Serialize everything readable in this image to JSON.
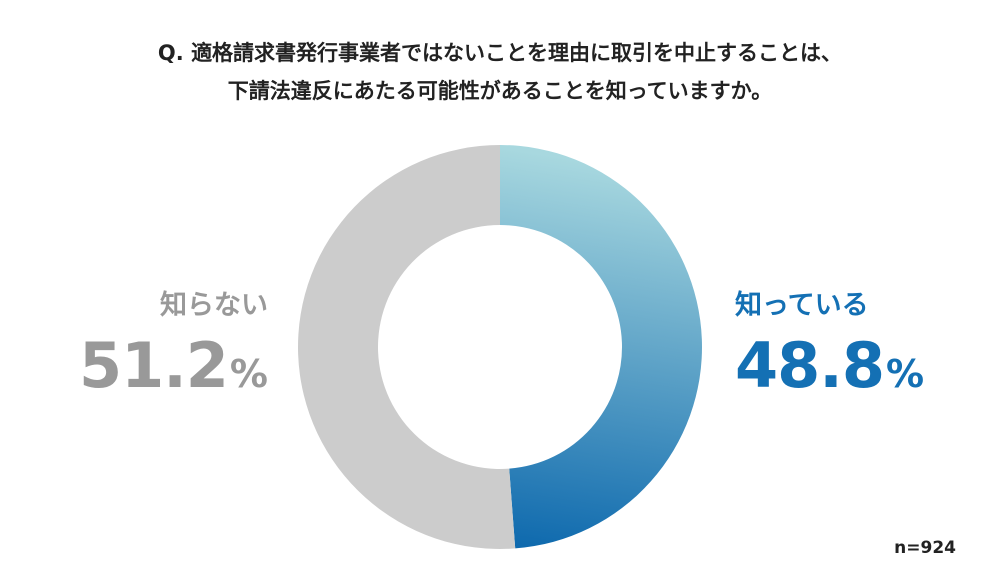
{
  "question": {
    "line1": "Q. 適格請求書発行事業者ではないことを理由に取引を中止することは、",
    "line2": "下請法違反にあたる可能性があることを知っていますか。"
  },
  "chart_data": {
    "type": "pie",
    "title": "",
    "slices": [
      {
        "label": "知っている",
        "value": 48.8,
        "display": "48.8",
        "color": "#1470b4",
        "gradient_from": "#a8d8df",
        "gradient_to": "#0f6aae"
      },
      {
        "label": "知らない",
        "value": 51.2,
        "display": "51.2",
        "color": "#cccccc"
      }
    ],
    "unit": "%",
    "donut": true,
    "start": "top",
    "direction": "clockwise"
  },
  "labels": {
    "left": {
      "name": "知らない",
      "value": "51.2",
      "unit": "%"
    },
    "right": {
      "name": "知っている",
      "value": "48.8",
      "unit": "%"
    }
  },
  "footnote": "n=924"
}
